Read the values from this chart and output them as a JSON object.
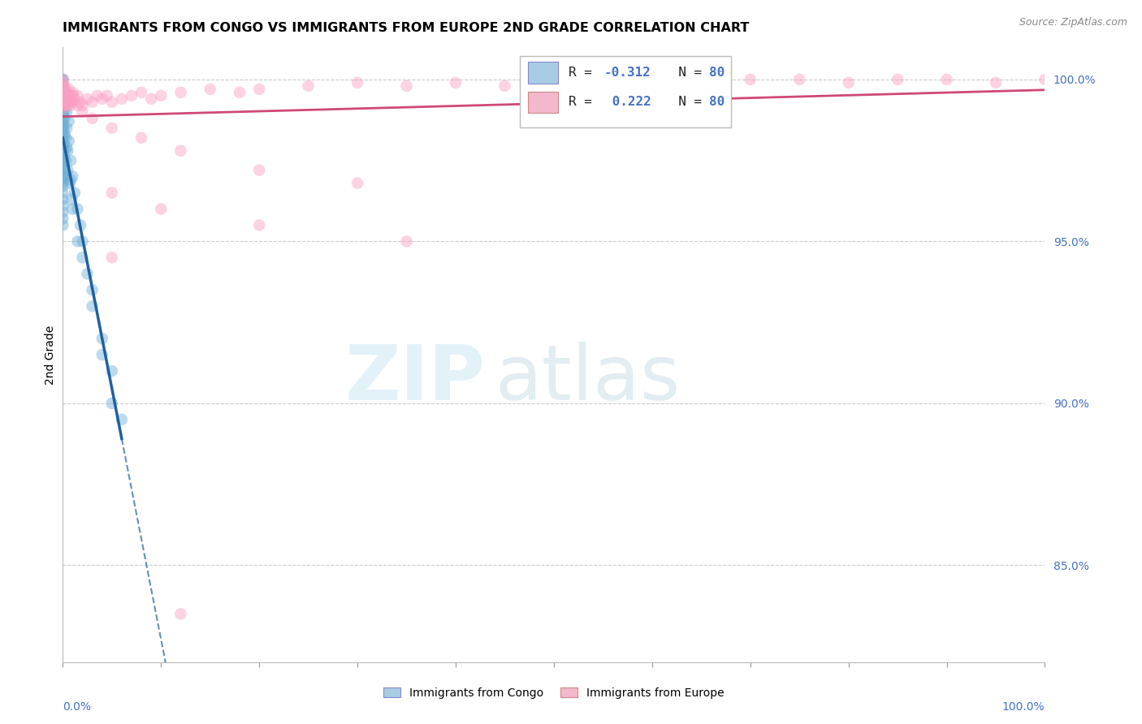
{
  "title": "IMMIGRANTS FROM CONGO VS IMMIGRANTS FROM EUROPE 2ND GRADE CORRELATION CHART",
  "source": "Source: ZipAtlas.com",
  "ylabel": "2nd Grade",
  "r_blue": -0.312,
  "n_blue": 80,
  "r_pink": 0.222,
  "n_pink": 80,
  "blue_fill": "#6baed6",
  "pink_fill": "#fc9dc2",
  "blue_line": "#2060a0",
  "pink_line": "#d04878",
  "legend_blue_box": "#a8cce4",
  "legend_pink_box": "#f4b8cc",
  "text_blue": "#4472C4",
  "blue_scatter_x": [
    0.0,
    0.0,
    0.0,
    0.0,
    0.0,
    0.0,
    0.0,
    0.0,
    0.0,
    0.0,
    0.0,
    0.0,
    0.0,
    0.0,
    0.0,
    0.0,
    0.0,
    0.0,
    0.0,
    0.0,
    0.0,
    0.0,
    0.0,
    0.0,
    0.0,
    0.0,
    0.0,
    0.0,
    0.0,
    0.0,
    0.0,
    0.0,
    0.0,
    0.0,
    0.0,
    0.0,
    0.0,
    0.0,
    0.0,
    0.0,
    0.2,
    0.2,
    0.2,
    0.2,
    0.2,
    0.4,
    0.4,
    0.4,
    0.6,
    0.6,
    0.8,
    0.8,
    1.0,
    1.2,
    1.5,
    1.8,
    2.0,
    2.5,
    3.0,
    4.0,
    5.0,
    6.0,
    0.1,
    0.1,
    0.1,
    0.1,
    0.1,
    0.1,
    0.3,
    0.3,
    0.5,
    0.5,
    0.7,
    0.9,
    1.0,
    1.5,
    2.0,
    3.0,
    4.0,
    5.0
  ],
  "blue_scatter_y": [
    100.0,
    100.0,
    99.8,
    99.7,
    99.6,
    99.5,
    99.4,
    99.3,
    99.2,
    99.1,
    99.0,
    98.9,
    98.8,
    98.7,
    98.6,
    98.5,
    98.4,
    98.3,
    98.2,
    98.1,
    98.0,
    97.9,
    97.8,
    97.7,
    97.6,
    97.5,
    97.4,
    97.3,
    97.2,
    97.1,
    97.0,
    96.9,
    96.8,
    96.7,
    96.5,
    96.3,
    96.1,
    95.9,
    95.7,
    95.5,
    99.5,
    99.2,
    98.8,
    98.3,
    97.8,
    99.0,
    98.5,
    97.9,
    98.7,
    98.1,
    97.5,
    96.9,
    97.0,
    96.5,
    96.0,
    95.5,
    95.0,
    94.0,
    93.5,
    92.0,
    91.0,
    89.5,
    99.5,
    99.0,
    98.5,
    98.0,
    97.5,
    97.0,
    98.2,
    97.5,
    97.8,
    97.2,
    96.8,
    96.3,
    96.0,
    95.0,
    94.5,
    93.0,
    91.5,
    90.0
  ],
  "pink_scatter_x": [
    0.0,
    0.0,
    0.0,
    0.0,
    0.0,
    0.0,
    0.0,
    0.0,
    0.0,
    0.0,
    0.2,
    0.2,
    0.2,
    0.4,
    0.4,
    0.6,
    0.6,
    0.8,
    0.8,
    1.0,
    1.0,
    1.2,
    1.5,
    1.8,
    2.0,
    2.5,
    3.0,
    3.5,
    4.0,
    4.5,
    5.0,
    6.0,
    7.0,
    8.0,
    9.0,
    10.0,
    12.0,
    15.0,
    18.0,
    20.0,
    25.0,
    30.0,
    35.0,
    40.0,
    45.0,
    50.0,
    55.0,
    60.0,
    65.0,
    70.0,
    75.0,
    80.0,
    85.0,
    90.0,
    95.0,
    100.0,
    0.1,
    0.1,
    0.1,
    0.3,
    0.3,
    0.5,
    0.5,
    0.7,
    0.9,
    1.0,
    1.5,
    2.0,
    3.0,
    5.0,
    8.0,
    12.0,
    20.0,
    30.0,
    5.0,
    10.0,
    20.0,
    35.0,
    5.0,
    12.0
  ],
  "pink_scatter_y": [
    100.0,
    99.9,
    99.8,
    99.7,
    99.6,
    99.5,
    99.4,
    99.3,
    99.2,
    99.1,
    99.8,
    99.5,
    99.2,
    99.6,
    99.3,
    99.7,
    99.4,
    99.5,
    99.2,
    99.6,
    99.3,
    99.4,
    99.5,
    99.3,
    99.2,
    99.4,
    99.3,
    99.5,
    99.4,
    99.5,
    99.3,
    99.4,
    99.5,
    99.6,
    99.4,
    99.5,
    99.6,
    99.7,
    99.6,
    99.7,
    99.8,
    99.9,
    99.8,
    99.9,
    99.8,
    100.0,
    99.9,
    100.0,
    99.9,
    100.0,
    100.0,
    99.9,
    100.0,
    100.0,
    99.9,
    100.0,
    99.7,
    99.5,
    99.3,
    99.6,
    99.4,
    99.5,
    99.2,
    99.4,
    99.3,
    99.5,
    99.2,
    99.0,
    98.8,
    98.5,
    98.2,
    97.8,
    97.2,
    96.8,
    96.5,
    96.0,
    95.5,
    95.0,
    94.5,
    83.5
  ],
  "xlim_min": 0.0,
  "xlim_max": 100.0,
  "ylim_min": 82.0,
  "ylim_max": 101.0,
  "ytick_vals": [
    85.0,
    90.0,
    95.0,
    100.0
  ],
  "ytick_labels": [
    "85.0%",
    "90.0%",
    "95.0%",
    "100.0%"
  ],
  "grid_color": "#cccccc",
  "scatter_alpha": 0.45,
  "scatter_size": 110,
  "scatter_lw": 0.0
}
